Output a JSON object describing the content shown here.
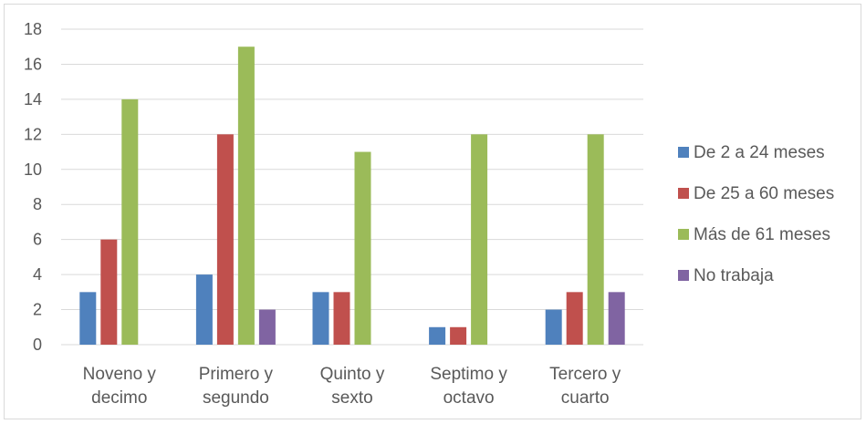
{
  "chart_data": {
    "type": "bar",
    "categories": [
      [
        "Noveno y",
        "decimo"
      ],
      [
        "Primero y",
        "segundo"
      ],
      [
        "Quinto y",
        "sexto"
      ],
      [
        "Septimo y",
        "octavo"
      ],
      [
        "Tercero y",
        "cuarto"
      ]
    ],
    "series": [
      {
        "name": "De 2 a 24 meses",
        "color": "#4f81bd",
        "values": [
          3,
          4,
          3,
          1,
          2
        ]
      },
      {
        "name": "De 25 a 60 meses",
        "color": "#c0504d",
        "values": [
          6,
          12,
          3,
          1,
          3
        ]
      },
      {
        "name": "Más de 61 meses",
        "color": "#9bbb59",
        "values": [
          14,
          17,
          11,
          12,
          12
        ]
      },
      {
        "name": "No trabaja",
        "color": "#8064a2",
        "values": [
          0,
          2,
          0,
          0,
          3
        ]
      }
    ],
    "ylim": [
      0,
      18
    ],
    "yticks": [
      0,
      2,
      4,
      6,
      8,
      10,
      12,
      14,
      16,
      18
    ],
    "grid": true,
    "legend_position": "right",
    "title": "",
    "xlabel": "",
    "ylabel": ""
  }
}
